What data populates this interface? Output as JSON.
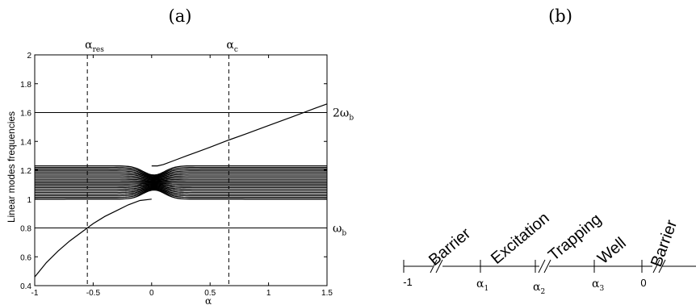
{
  "panels": {
    "a_label": "(a)",
    "b_label": "(b)"
  },
  "chart_data": [
    {
      "type": "line",
      "title": "",
      "xlabel": "α",
      "ylabel": "Linear modes frequencies",
      "xlim": [
        -1,
        1.5
      ],
      "ylim": [
        0.4,
        2
      ],
      "xticks": [
        "-1",
        "-0.5",
        "0",
        "0.5",
        "1",
        "1.5"
      ],
      "yticks": [
        "0.4",
        "0.6",
        "0.8",
        "1",
        "1.2",
        "1.4",
        "1.6",
        "1.8",
        "2"
      ],
      "grid": false,
      "horizontal_lines": [
        {
          "y": 1.6,
          "label_main": "2ω",
          "label_sub": "b"
        },
        {
          "y": 0.8,
          "label_main": "ω",
          "label_sub": "b"
        }
      ],
      "vertical_dashed_lines": [
        {
          "x": -0.55,
          "label_main": "α",
          "label_sub": "res"
        },
        {
          "x": 0.66,
          "label_main": "α",
          "label_sub": "c"
        }
      ],
      "band": {
        "y_min": 1.0,
        "y_max": 1.23,
        "line_count": 21
      },
      "series": [
        {
          "x": [
            -1.0,
            -0.9,
            -0.8,
            -0.7,
            -0.6,
            -0.55,
            -0.5,
            -0.4,
            -0.3,
            -0.2,
            -0.1,
            0.0
          ],
          "y": [
            0.46,
            0.56,
            0.64,
            0.71,
            0.77,
            0.8,
            0.83,
            0.88,
            0.92,
            0.96,
            0.99,
            1.0
          ]
        },
        {
          "x": [
            0.0,
            0.05,
            0.1,
            0.2,
            0.3,
            0.4,
            0.5,
            0.66,
            0.8,
            1.0,
            1.2,
            1.4,
            1.5
          ],
          "y": [
            1.23,
            1.23,
            1.24,
            1.27,
            1.3,
            1.33,
            1.36,
            1.41,
            1.45,
            1.51,
            1.57,
            1.63,
            1.66
          ]
        }
      ]
    }
  ],
  "diagram_b": {
    "start_label": "-1",
    "zero_label": "0",
    "markers": [
      {
        "main": "α",
        "sub": "1"
      },
      {
        "main": "α",
        "sub": "2"
      },
      {
        "main": "α",
        "sub": "3"
      }
    ],
    "regions": [
      "Barrier",
      "Excitation",
      "Trapping",
      "Well",
      "Barrier"
    ]
  }
}
